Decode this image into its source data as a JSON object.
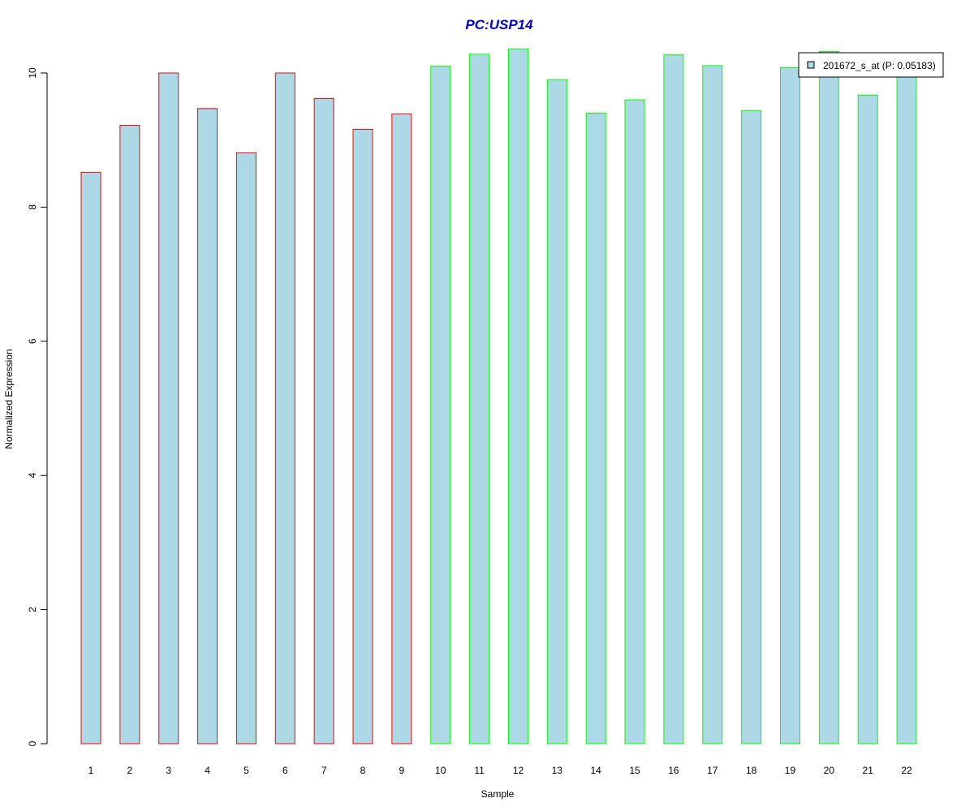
{
  "chart_data": {
    "type": "bar",
    "title": "PC:USP14",
    "xlabel": "Sample",
    "ylabel": "Normalized Expression",
    "categories": [
      "1",
      "2",
      "3",
      "4",
      "5",
      "6",
      "7",
      "8",
      "9",
      "10",
      "11",
      "12",
      "13",
      "14",
      "15",
      "16",
      "17",
      "18",
      "19",
      "20",
      "21",
      "22"
    ],
    "series": [
      {
        "name": "201672_s_at (P: 0.05183)",
        "values": [
          8.52,
          9.22,
          10.0,
          9.47,
          8.81,
          10.0,
          9.62,
          9.16,
          9.39,
          10.1,
          10.28,
          10.36,
          9.9,
          9.4,
          9.6,
          10.27,
          10.11,
          9.44,
          10.08,
          10.32,
          9.67,
          10.0
        ]
      }
    ],
    "group_outline": [
      "red",
      "red",
      "red",
      "red",
      "red",
      "red",
      "red",
      "red",
      "red",
      "green",
      "green",
      "green",
      "green",
      "green",
      "green",
      "green",
      "green",
      "green",
      "green",
      "green",
      "green",
      "green"
    ],
    "ylim": [
      0,
      10.4
    ],
    "yticks": [
      "0",
      "2",
      "4",
      "6",
      "8",
      "10"
    ],
    "grid": false,
    "legend_position": "top-right"
  },
  "colors": {
    "bar_fill": "#add8e6",
    "outline_red": "#ff0000",
    "outline_green": "#00ff00",
    "title": "#0000cc",
    "axis": "#000000"
  }
}
